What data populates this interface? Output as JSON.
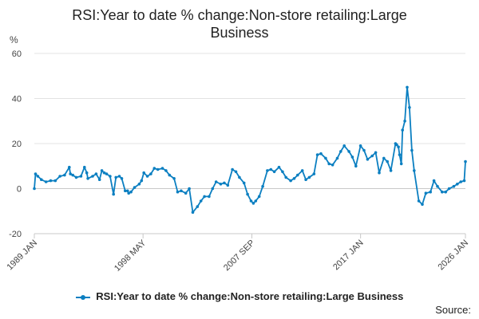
{
  "chart_data": {
    "type": "line",
    "title": "RSI:Year to date % change:Non-store retailing:Large Business",
    "ylabel": "%",
    "ylim": [
      -20,
      60
    ],
    "yticks": [
      -20,
      0,
      20,
      40,
      60
    ],
    "xlim": [
      1989.0,
      2026.0
    ],
    "xticks": [
      {
        "label": "1989 JAN",
        "value": 1989.0
      },
      {
        "label": "1998 MAY",
        "value": 1998.33
      },
      {
        "label": "2007 SEP",
        "value": 2007.67
      },
      {
        "label": "2017 JAN",
        "value": 2017.0
      },
      {
        "label": "2026 JAN",
        "value": 2026.0
      }
    ],
    "grid": true,
    "legend_position": "bottom",
    "color": "#0b7fc1",
    "series": [
      {
        "name": "RSI:Year to date % change:Non-store retailing:Large Business",
        "x": [
          1989.0,
          1989.1,
          1989.3,
          1989.6,
          1990.0,
          1990.4,
          1990.8,
          1991.2,
          1991.6,
          1992.0,
          1992.1,
          1992.3,
          1992.6,
          1993.0,
          1993.3,
          1993.5,
          1993.6,
          1994.0,
          1994.3,
          1994.6,
          1994.8,
          1995.0,
          1995.2,
          1995.5,
          1995.8,
          1996.0,
          1996.3,
          1996.5,
          1996.8,
          1997.0,
          1997.1,
          1997.3,
          1997.6,
          1998.0,
          1998.2,
          1998.4,
          1998.7,
          1999.0,
          1999.3,
          1999.6,
          2000.0,
          2000.3,
          2000.6,
          2001.0,
          2001.3,
          2001.6,
          2002.0,
          2002.3,
          2002.6,
          2003.0,
          2003.3,
          2003.6,
          2004.0,
          2004.3,
          2004.6,
          2005.0,
          2005.3,
          2005.6,
          2006.0,
          2006.3,
          2006.6,
          2007.0,
          2007.3,
          2007.6,
          2007.8,
          2008.0,
          2008.3,
          2008.6,
          2009.0,
          2009.3,
          2009.6,
          2010.0,
          2010.3,
          2010.6,
          2011.0,
          2011.3,
          2011.6,
          2012.0,
          2012.3,
          2012.6,
          2013.0,
          2013.3,
          2013.6,
          2014.0,
          2014.3,
          2014.6,
          2015.0,
          2015.3,
          2015.6,
          2016.0,
          2016.3,
          2016.6,
          2017.0,
          2017.3,
          2017.6,
          2018.0,
          2018.3,
          2018.6,
          2019.0,
          2019.3,
          2019.6,
          2020.0,
          2020.1,
          2020.25,
          2020.35,
          2020.5,
          2020.6,
          2020.8,
          2021.0,
          2021.2,
          2021.4,
          2021.6,
          2022.0,
          2022.3,
          2022.6,
          2023.0,
          2023.3,
          2023.6,
          2024.0,
          2024.3,
          2024.6,
          2025.0,
          2025.3,
          2025.6,
          2025.9,
          2026.0
        ],
        "y": [
          0,
          6.5,
          5.5,
          4.0,
          3.0,
          3.5,
          3.5,
          5.5,
          6.0,
          9.5,
          6.5,
          6.0,
          5.0,
          5.5,
          9.5,
          7.0,
          4.5,
          5.5,
          6.5,
          4.0,
          8.0,
          7.0,
          6.5,
          5.5,
          -2.5,
          5.0,
          5.5,
          4.5,
          -1.0,
          -1.0,
          -2.0,
          -1.5,
          0.5,
          2.0,
          3.5,
          7.0,
          5.5,
          6.5,
          9.0,
          8.5,
          9.0,
          8.0,
          6.0,
          4.5,
          -1.5,
          -1.0,
          -2.0,
          0,
          -10.5,
          -8.0,
          -5.5,
          -3.5,
          -3.5,
          0,
          3.0,
          2.0,
          2.5,
          1.5,
          8.5,
          7.5,
          5.0,
          2.5,
          -2.5,
          -5.5,
          -6.5,
          -5.5,
          -3.5,
          1.0,
          8.0,
          8.5,
          7.5,
          9.5,
          7.5,
          5.0,
          3.5,
          4.5,
          6.0,
          8.0,
          4.0,
          5.0,
          6.5,
          15.0,
          15.5,
          13.5,
          11.0,
          10.5,
          13.5,
          16.5,
          19.0,
          16.5,
          14.0,
          10.0,
          19.0,
          17.0,
          13.0,
          14.5,
          16.0,
          7.0,
          13.5,
          12.0,
          8.0,
          20.0,
          19.5,
          18.5,
          15.0,
          11.0,
          26.0,
          30.0,
          45.0,
          36.0,
          17.0,
          8.0,
          -5.5,
          -7.0,
          -2.0,
          -1.5,
          3.5,
          1.0,
          -1.5,
          -1.5,
          0,
          1.0,
          2.0,
          3.0,
          3.5,
          12.0
        ]
      }
    ]
  },
  "source_label": "Source:"
}
